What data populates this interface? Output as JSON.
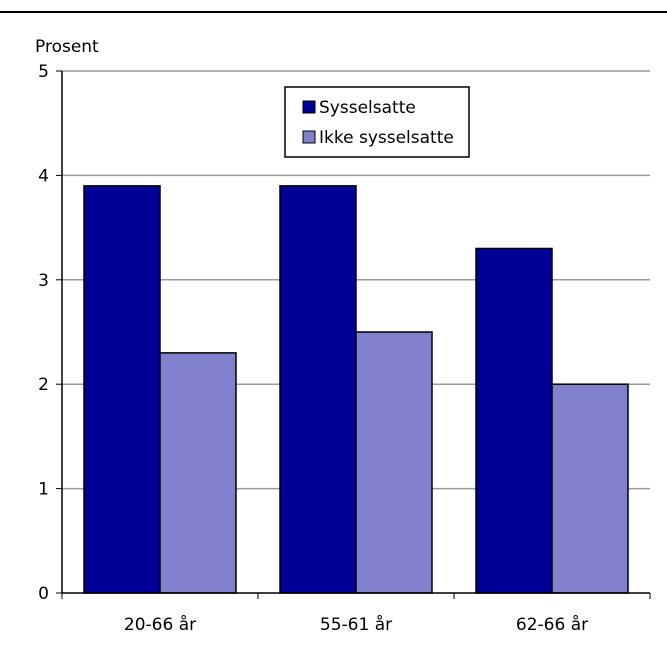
{
  "chart_data": {
    "type": "bar",
    "ylabel": "Prosent",
    "ylim": [
      0,
      5
    ],
    "yticks": [
      0,
      1,
      2,
      3,
      4,
      5
    ],
    "grid": true,
    "legend_position": "top-center",
    "categories": [
      "20-66 år",
      "55-61 år",
      "62-66 år"
    ],
    "series": [
      {
        "name": "Sysselsatte",
        "values": [
          3.9,
          3.9,
          3.3
        ],
        "color": "#000099"
      },
      {
        "name": "Ikke sysselsatte",
        "values": [
          2.3,
          2.5,
          2.0
        ],
        "color": "#8080cc"
      }
    ]
  }
}
